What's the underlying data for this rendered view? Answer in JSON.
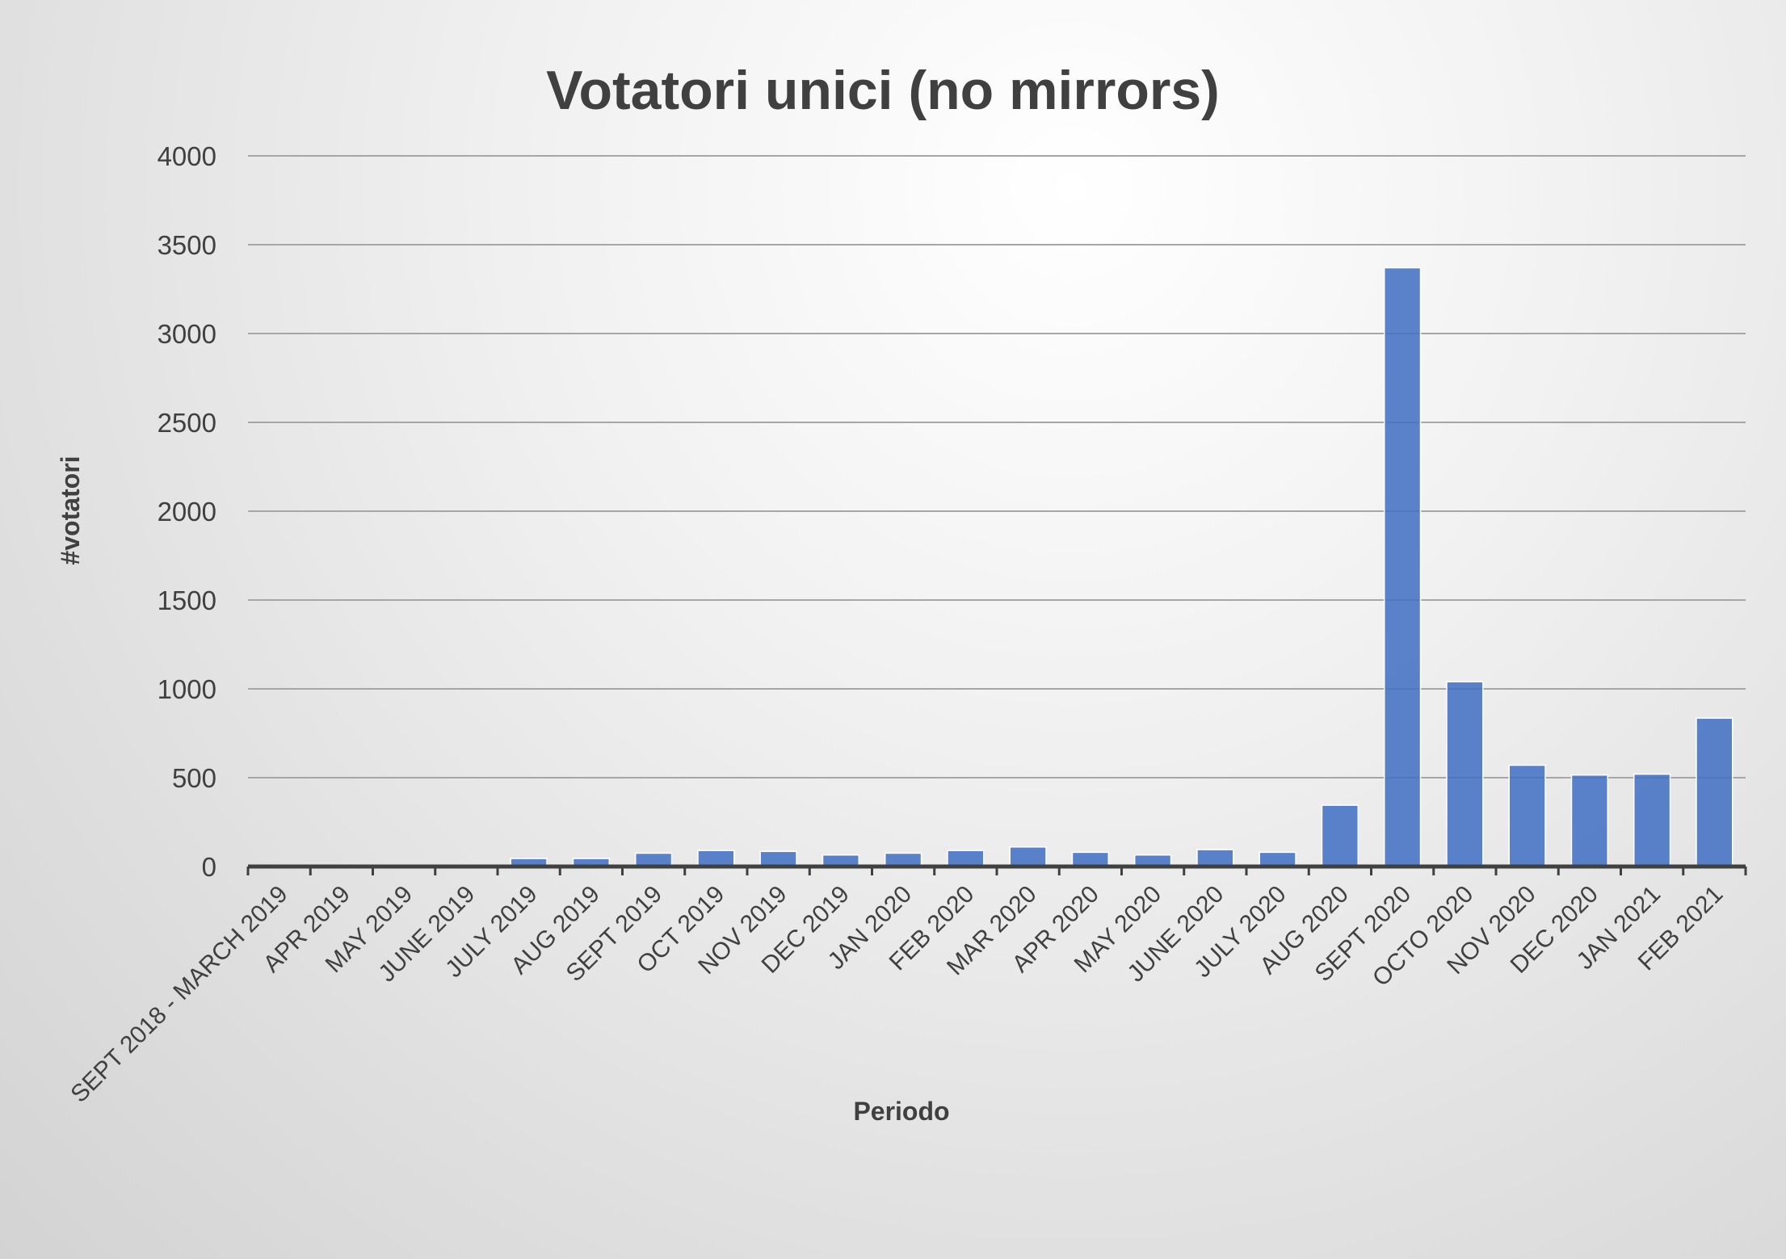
{
  "chart_data": {
    "type": "bar",
    "title": "Votatori unici (no mirrors)",
    "xlabel": "Periodo",
    "ylabel": "#votatori",
    "ylim": [
      0,
      4000
    ],
    "yticks": [
      "0",
      "500",
      "1000",
      "1500",
      "2000",
      "2500",
      "3000",
      "3500",
      "4000"
    ],
    "grid": true,
    "colors": {
      "bar": "#4472c4",
      "text": "#404040",
      "grid": "#a6a6a6"
    },
    "categories": [
      "SEPT 2018 - MARCH 2019",
      "APR 2019",
      "MAY 2019",
      "JUNE 2019",
      "JULY 2019",
      "AUG 2019",
      "SEPT 2019",
      "OCT 2019",
      "NOV 2019",
      "DEC 2019",
      "JAN 2020",
      "FEB 2020",
      "MAR 2020",
      "APR 2020",
      "MAY 2020",
      "JUNE 2020",
      "JULY 2020",
      "AUG 2020",
      "SEPT 2020",
      "OCTO 2020",
      "NOV 2020",
      "DEC 2020",
      "JAN 2021",
      "FEB 2021"
    ],
    "values": [
      2,
      5,
      3,
      3,
      45,
      45,
      75,
      90,
      85,
      65,
      75,
      90,
      110,
      80,
      65,
      95,
      80,
      345,
      3370,
      1040,
      570,
      515,
      520,
      835
    ]
  }
}
